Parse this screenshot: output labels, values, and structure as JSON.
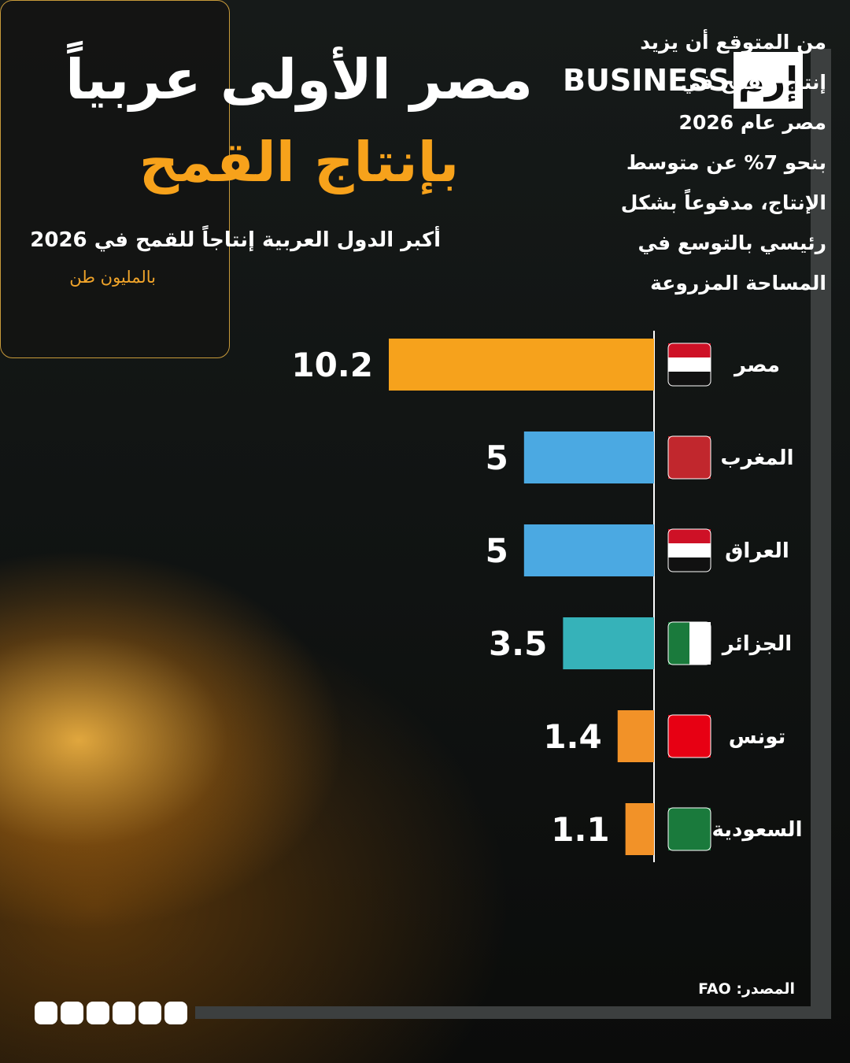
{
  "header": {
    "title_line1": "مصر الأولى عربياً",
    "title_line2": "بإنتاج القمح",
    "logo_text": "BUSINESS",
    "logo_mark": "إرم"
  },
  "chart_data": {
    "type": "bar",
    "orientation": "horizontal",
    "title": "أكبر الدول العربية إنتاجاً للقمح في 2026",
    "unit": "بالمليون طن",
    "categories": [
      "مصر",
      "المغرب",
      "العراق",
      "الجزائر",
      "تونس",
      "السعودية"
    ],
    "values": [
      10.2,
      5,
      5,
      3.5,
      1.4,
      1.1
    ],
    "colors": [
      "#f6a21c",
      "#4ba9e2",
      "#4ba9e2",
      "#36b2b9",
      "#f29228",
      "#f29228"
    ]
  },
  "note": {
    "lines": [
      "من المتوقع أن يزيد",
      "إنتاج القمح في",
      "مصر عام 2026",
      "بنحو 7% عن متوسط",
      "الإنتاج، مدفوعاً بشكل",
      "رئيسي بالتوسع في",
      "المساحة المزروعة"
    ]
  },
  "footer": {
    "source": "المصدر: FAO"
  }
}
